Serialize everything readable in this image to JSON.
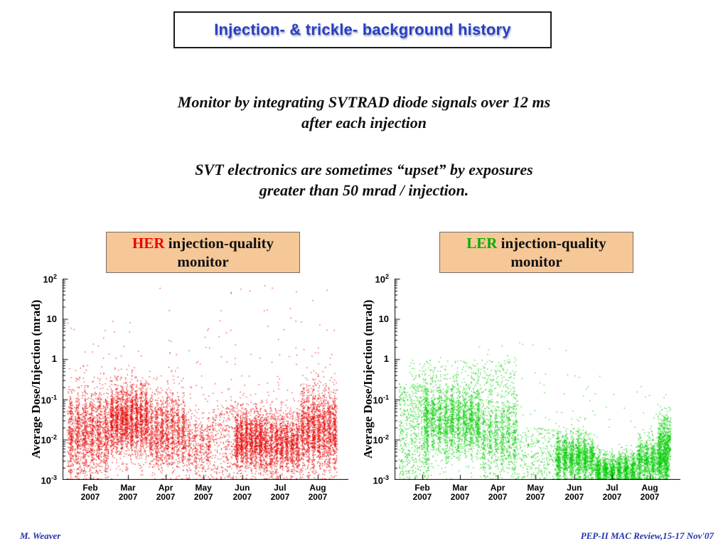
{
  "slide": {
    "title": "Injection- & trickle- background history",
    "body": [
      "Monitor by integrating SVTRAD diode signals over 12 ms",
      "after each injection",
      "SVT electronics are sometimes “upset” by exposures",
      "greater than 50 mrad / injection."
    ],
    "footer_left": "M. Weaver",
    "footer_right": "PEP-II  MAC Review,15-17 Nov'07"
  },
  "her_box": {
    "prefix": "HER",
    "prefix_color": "#ee0000",
    "rest": " injection-quality",
    "line2": "monitor"
  },
  "ler_box": {
    "prefix": "LER",
    "prefix_color": "#00b000",
    "rest": " injection-quality",
    "line2": "monitor"
  },
  "chart_data": [
    {
      "id": "her",
      "type": "scatter",
      "title": "HER injection-quality monitor",
      "ylabel": "Average Dose/Injection (mrad)",
      "xlabel": "",
      "y_scale": "log",
      "ylim": [
        0.001,
        100
      ],
      "x_range": "Feb 2007 - Aug 2007",
      "point_color": "#e60000",
      "seed": 20071,
      "legend": "none",
      "grid": false,
      "y_ticks": [
        {
          "text": "10",
          "sup": "2"
        },
        {
          "text": "10",
          "sup": ""
        },
        {
          "text": "1",
          "sup": ""
        },
        {
          "text": "10",
          "sup": "-1"
        },
        {
          "text": "10",
          "sup": "-2"
        },
        {
          "text": "10",
          "sup": "-3"
        }
      ],
      "x_ticks": [
        {
          "month": "Feb",
          "year": "2007",
          "f": 0.097
        },
        {
          "month": "Mar",
          "year": "2007",
          "f": 0.229
        },
        {
          "month": "Apr",
          "year": "2007",
          "f": 0.361
        },
        {
          "month": "May",
          "year": "2007",
          "f": 0.493
        },
        {
          "month": "Jun",
          "year": "2007",
          "f": 0.629
        },
        {
          "month": "Jul",
          "year": "2007",
          "f": 0.761
        },
        {
          "month": "Aug",
          "year": "2007",
          "f": 0.893
        }
      ],
      "clusters": [
        {
          "x": [
            0.015,
            0.163
          ],
          "n": 1700,
          "dist": "gauss",
          "mu": -1.85,
          "sigma": 0.55,
          "stripes": 6
        },
        {
          "x": [
            0.163,
            0.3
          ],
          "n": 2200,
          "dist": "gauss",
          "mu": -1.5,
          "sigma": 0.45,
          "stripes": 8
        },
        {
          "x": [
            0.3,
            0.43
          ],
          "n": 1400,
          "dist": "gauss",
          "mu": -1.8,
          "sigma": 0.5,
          "stripes": 7
        },
        {
          "x": [
            0.43,
            0.52
          ],
          "n": 450,
          "dist": "gauss",
          "mu": -2.1,
          "sigma": 0.45,
          "stripes": 4
        },
        {
          "x": [
            0.52,
            0.6
          ],
          "n": 260,
          "dist": "uniform",
          "range": [
            -3,
            -1.1
          ]
        },
        {
          "x": [
            0.6,
            0.7
          ],
          "n": 1500,
          "dist": "gauss",
          "mu": -2.0,
          "sigma": 0.38,
          "stripes": 6
        },
        {
          "x": [
            0.7,
            0.83
          ],
          "n": 1600,
          "dist": "gauss",
          "mu": -2.1,
          "sigma": 0.42,
          "stripes": 7
        },
        {
          "x": [
            0.83,
            0.96
          ],
          "n": 1900,
          "dist": "gauss",
          "mu": -1.75,
          "sigma": 0.5,
          "stripes": 7
        },
        {
          "x": [
            0.015,
            0.96
          ],
          "n": 280,
          "dist": "uniform",
          "range": [
            -3,
            -0.4
          ]
        },
        {
          "x": [
            0.015,
            0.96
          ],
          "n": 70,
          "dist": "uniform",
          "range": [
            -0.4,
            1.0
          ]
        },
        {
          "x": [
            0.3,
            0.96
          ],
          "n": 16,
          "dist": "uniform",
          "range": [
            1.0,
            1.85
          ]
        }
      ]
    },
    {
      "id": "ler",
      "type": "scatter",
      "title": "LER injection-quality monitor",
      "ylabel": "Average Dose/Injection (mrad)",
      "xlabel": "",
      "y_scale": "log",
      "ylim": [
        0.001,
        100
      ],
      "x_range": "Feb 2007 - Aug 2007",
      "point_color": "#00cc00",
      "seed": 20072,
      "legend": "none",
      "grid": false,
      "y_ticks": [
        {
          "text": "10",
          "sup": "2"
        },
        {
          "text": "10",
          "sup": ""
        },
        {
          "text": "1",
          "sup": ""
        },
        {
          "text": "10",
          "sup": "-1"
        },
        {
          "text": "10",
          "sup": "-2"
        },
        {
          "text": "10",
          "sup": "-3"
        }
      ],
      "x_ticks": [
        {
          "month": "Feb",
          "year": "2007",
          "f": 0.097
        },
        {
          "month": "Mar",
          "year": "2007",
          "f": 0.229
        },
        {
          "month": "Apr",
          "year": "2007",
          "f": 0.361
        },
        {
          "month": "May",
          "year": "2007",
          "f": 0.493
        },
        {
          "month": "Jun",
          "year": "2007",
          "f": 0.629
        },
        {
          "month": "Jul",
          "year": "2007",
          "f": 0.761
        },
        {
          "month": "Aug",
          "year": "2007",
          "f": 0.893
        }
      ],
      "clusters": [
        {
          "x": [
            0.015,
            0.12
          ],
          "n": 600,
          "dist": "uniform",
          "range": [
            -3,
            -0.6
          ]
        },
        {
          "x": [
            0.1,
            0.3
          ],
          "n": 2200,
          "dist": "gauss",
          "mu": -1.55,
          "sigma": 0.45,
          "stripes": 9
        },
        {
          "x": [
            0.05,
            0.43
          ],
          "n": 280,
          "dist": "uniform",
          "range": [
            -0.85,
            0.0
          ]
        },
        {
          "x": [
            0.3,
            0.43
          ],
          "n": 1000,
          "dist": "gauss",
          "mu": -1.85,
          "sigma": 0.55,
          "stripes": 6
        },
        {
          "x": [
            0.43,
            0.56
          ],
          "n": 260,
          "dist": "uniform",
          "range": [
            -3,
            -1.7
          ]
        },
        {
          "x": [
            0.56,
            0.7
          ],
          "n": 1700,
          "dist": "gauss",
          "mu": -2.45,
          "sigma": 0.3,
          "stripes": 6
        },
        {
          "x": [
            0.7,
            0.845
          ],
          "n": 1600,
          "dist": "gauss",
          "mu": -2.75,
          "sigma": 0.2,
          "stripes": 6
        },
        {
          "x": [
            0.845,
            0.96
          ],
          "n": 1400,
          "dist": "gauss",
          "mu": -2.55,
          "sigma": 0.3,
          "stripes": 5
        },
        {
          "x": [
            0.92,
            0.965
          ],
          "n": 550,
          "dist": "gauss",
          "mu": -2.05,
          "sigma": 0.35
        },
        {
          "x": [
            0.015,
            0.96
          ],
          "n": 160,
          "dist": "uniform",
          "range": [
            -3,
            -0.3
          ]
        },
        {
          "x": [
            0.3,
            0.6
          ],
          "n": 10,
          "dist": "uniform",
          "range": [
            -0.3,
            0.5
          ]
        }
      ]
    }
  ]
}
